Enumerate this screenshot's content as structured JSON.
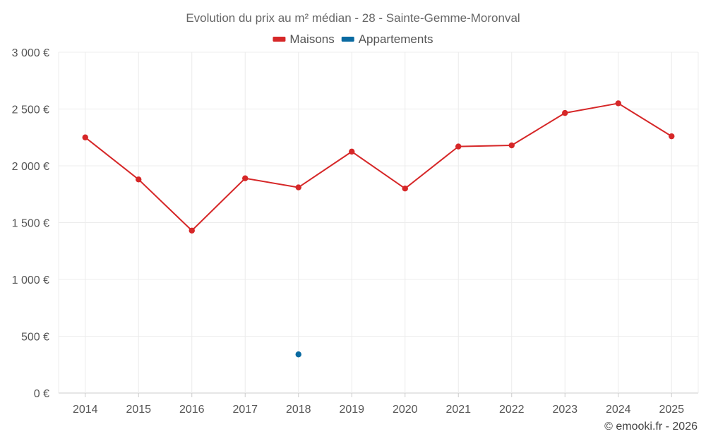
{
  "chart_data": {
    "type": "line",
    "title": "Evolution du prix au m² médian - 28 - Sainte-Gemme-Moronval",
    "categories": [
      "2014",
      "2015",
      "2016",
      "2017",
      "2018",
      "2019",
      "2020",
      "2021",
      "2022",
      "2023",
      "2024",
      "2025"
    ],
    "ylim": [
      0,
      3000
    ],
    "yticks": [
      0,
      500,
      1000,
      1500,
      2000,
      2500,
      3000
    ],
    "ytick_labels": [
      "0 €",
      "500 €",
      "1 000 €",
      "1 500 €",
      "2 000 €",
      "2 500 €",
      "3 000 €"
    ],
    "grid": true,
    "legend_position": "top-center",
    "series": [
      {
        "name": "Maisons",
        "color": "#d62728",
        "values": [
          2250,
          1880,
          1430,
          1890,
          1810,
          2125,
          1800,
          2170,
          2180,
          2465,
          2550,
          2260
        ]
      },
      {
        "name": "Appartements",
        "color": "#0a6aa1",
        "values": [
          null,
          null,
          null,
          null,
          340,
          null,
          null,
          null,
          null,
          null,
          null,
          null
        ]
      }
    ]
  },
  "credit": "© emooki.fr - 2026"
}
